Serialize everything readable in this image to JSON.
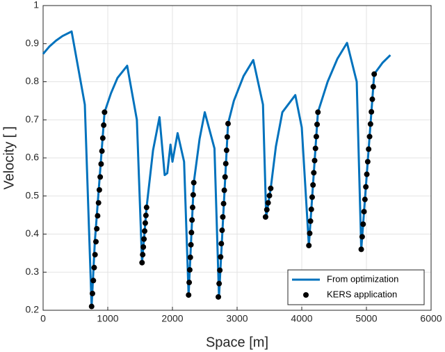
{
  "chart_data": {
    "type": "line",
    "x_label": "Space [m]",
    "y_label": "Velocity [ ]",
    "xlim": [
      0,
      6000
    ],
    "xticks": [
      0,
      1000,
      2000,
      3000,
      4000,
      5000,
      6000
    ],
    "ylim": [
      0.2,
      1
    ],
    "yticks": [
      0.2,
      0.3,
      0.4,
      0.5,
      0.6,
      0.7,
      0.8,
      0.9,
      1
    ],
    "grid": true,
    "legend": "lower right",
    "series": [
      {
        "name": "From optimization",
        "type": "line",
        "color": "#0072bd",
        "x": [
          0,
          100,
          200,
          300,
          441,
          645,
          750,
          800,
          950,
          1050,
          1150,
          1300,
          1450,
          1530,
          1600,
          1700,
          1800,
          1880,
          1920,
          1970,
          2000,
          2080,
          2180,
          2250,
          2330,
          2420,
          2500,
          2650,
          2720,
          2860,
          2950,
          3100,
          3250,
          3400,
          3450,
          3520,
          3600,
          3700,
          3900,
          4000,
          4110,
          4250,
          4400,
          4550,
          4700,
          4850,
          4920,
          5120,
          5250,
          5370
        ],
        "values": [
          0.873,
          0.893,
          0.908,
          0.92,
          0.932,
          0.74,
          0.21,
          0.38,
          0.72,
          0.77,
          0.81,
          0.842,
          0.7,
          0.325,
          0.47,
          0.62,
          0.707,
          0.555,
          0.56,
          0.635,
          0.59,
          0.665,
          0.59,
          0.24,
          0.535,
          0.65,
          0.72,
          0.625,
          0.235,
          0.69,
          0.75,
          0.815,
          0.857,
          0.74,
          0.445,
          0.52,
          0.63,
          0.72,
          0.765,
          0.68,
          0.37,
          0.72,
          0.8,
          0.86,
          0.902,
          0.8,
          0.36,
          0.82,
          0.85,
          0.87
        ]
      },
      {
        "name": "KERS application",
        "type": "scatter",
        "color": "#000000",
        "x": [
          750,
          763,
          777,
          790,
          803,
          817,
          830,
          843,
          857,
          870,
          883,
          897,
          910,
          923,
          937,
          950,
          1530,
          1540,
          1550,
          1560,
          1570,
          1580,
          1590,
          1600,
          2250,
          2259,
          2268,
          2277,
          2286,
          2294,
          2303,
          2312,
          2321,
          2330,
          2710,
          2722,
          2733,
          2745,
          2756,
          2768,
          2779,
          2791,
          2802,
          2814,
          2825,
          2837,
          2848,
          2860,
          3440,
          3460,
          3480,
          3500,
          3520,
          4110,
          4123,
          4135,
          4148,
          4161,
          4174,
          4186,
          4199,
          4212,
          4225,
          4237,
          4250,
          4920,
          4934,
          4949,
          4963,
          4977,
          4991,
          5006,
          5020,
          5034,
          5049,
          5063,
          5077,
          5091,
          5106,
          5120
        ],
        "values": [
          0.21,
          0.244,
          0.278,
          0.312,
          0.346,
          0.38,
          0.414,
          0.448,
          0.482,
          0.516,
          0.55,
          0.584,
          0.618,
          0.652,
          0.686,
          0.72,
          0.325,
          0.346,
          0.366,
          0.387,
          0.408,
          0.429,
          0.449,
          0.47,
          0.24,
          0.273,
          0.306,
          0.339,
          0.372,
          0.404,
          0.437,
          0.47,
          0.503,
          0.535,
          0.235,
          0.27,
          0.305,
          0.34,
          0.375,
          0.41,
          0.445,
          0.48,
          0.515,
          0.55,
          0.585,
          0.62,
          0.655,
          0.69,
          0.445,
          0.464,
          0.482,
          0.501,
          0.52,
          0.37,
          0.402,
          0.434,
          0.465,
          0.497,
          0.529,
          0.561,
          0.593,
          0.625,
          0.656,
          0.688,
          0.72,
          0.36,
          0.393,
          0.426,
          0.459,
          0.491,
          0.524,
          0.557,
          0.59,
          0.623,
          0.656,
          0.689,
          0.721,
          0.754,
          0.787,
          0.82
        ]
      }
    ]
  }
}
